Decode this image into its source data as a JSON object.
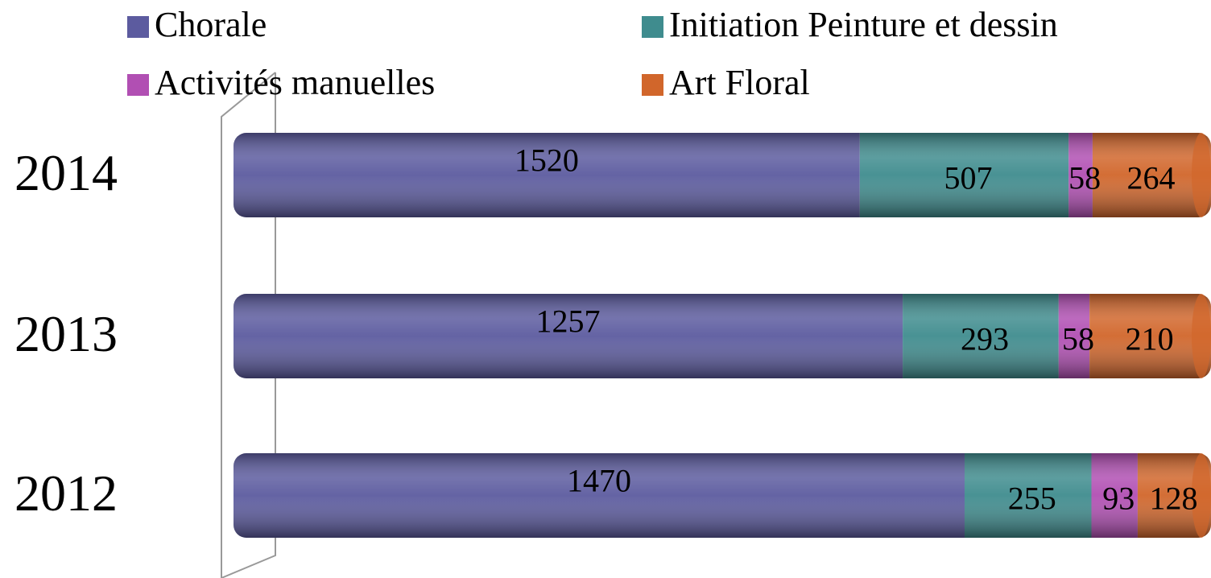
{
  "chart_data": {
    "type": "bar",
    "orientation": "horizontal",
    "stacked": "percent",
    "categories": [
      "2014",
      "2013",
      "2012"
    ],
    "series": [
      {
        "name": "Chorale",
        "color": "#5c5b9f",
        "values": [
          1520,
          1257,
          1470
        ]
      },
      {
        "name": "Initiation Peinture et dessin",
        "color": "#3f8c8e",
        "values": [
          507,
          293,
          255
        ]
      },
      {
        "name": "Activités manuelles",
        "color": "#b14fb3",
        "values": [
          58,
          58,
          93
        ]
      },
      {
        "name": "Art Floral",
        "color": "#d1662b",
        "values": [
          264,
          210,
          128
        ]
      }
    ]
  }
}
